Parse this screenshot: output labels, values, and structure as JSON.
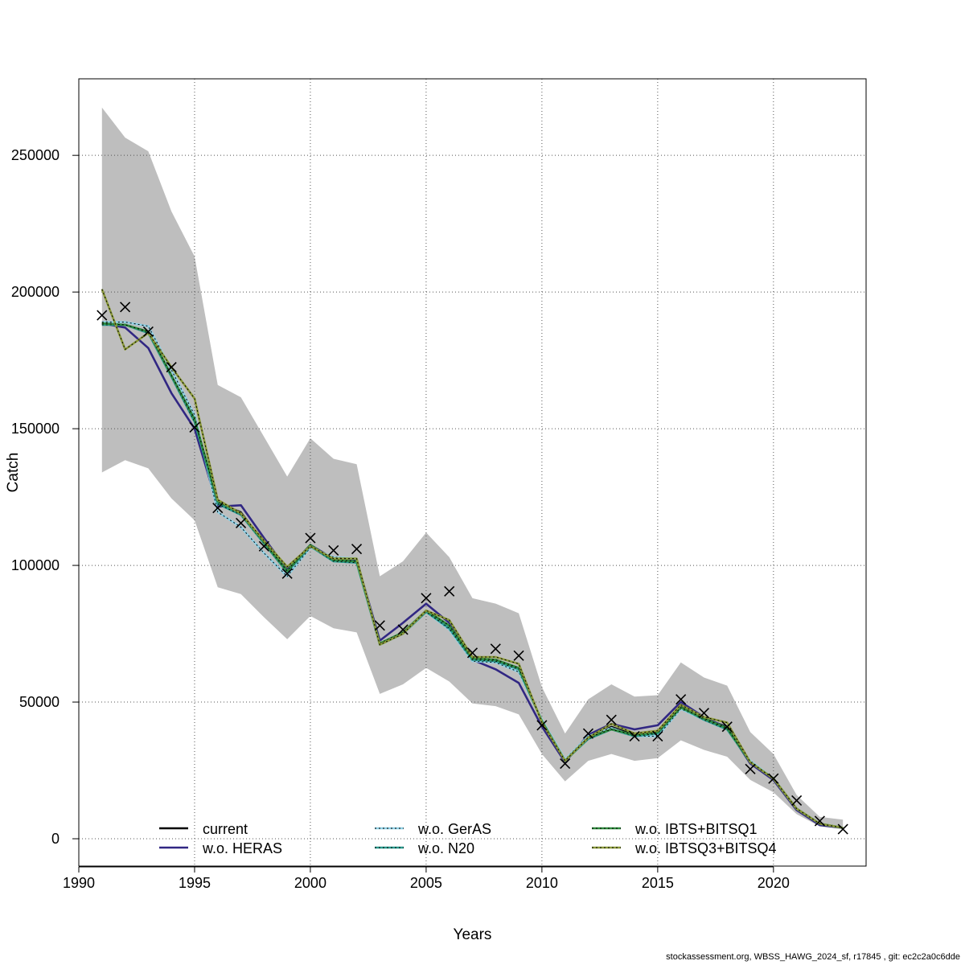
{
  "chart_data": {
    "type": "line",
    "xlabel": "Years",
    "ylabel": "Catch",
    "xlim": [
      1990,
      2024
    ],
    "ylim": [
      -10000,
      278000
    ],
    "x_ticks": [
      1990,
      1995,
      2000,
      2005,
      2010,
      2015,
      2020
    ],
    "y_ticks": [
      0,
      50000,
      100000,
      150000,
      200000,
      250000
    ],
    "grid": true,
    "legend_position": "bottom",
    "x": [
      1991,
      1992,
      1993,
      1994,
      1995,
      1996,
      1997,
      1998,
      1999,
      2000,
      2001,
      2002,
      2003,
      2004,
      2005,
      2006,
      2007,
      2008,
      2009,
      2010,
      2011,
      2012,
      2013,
      2014,
      2015,
      2016,
      2017,
      2018,
      2019,
      2020,
      2021,
      2022,
      2023
    ],
    "band_upper": [
      267500,
      256500,
      251500,
      229500,
      213000,
      166000,
      161500,
      147000,
      132500,
      146500,
      139000,
      137000,
      96000,
      101500,
      112000,
      103000,
      88000,
      86000,
      82500,
      55500,
      38500,
      51000,
      56500,
      52000,
      52500,
      64500,
      59000,
      56000,
      39000,
      31000,
      16000,
      8000,
      7000
    ],
    "band_lower": [
      134000,
      138500,
      135500,
      124500,
      116500,
      92000,
      89500,
      81000,
      73000,
      81500,
      77000,
      75500,
      53000,
      56500,
      62500,
      57500,
      49500,
      48500,
      45500,
      31000,
      21000,
      28500,
      31000,
      28500,
      29500,
      36000,
      32500,
      30000,
      21500,
      17000,
      9000,
      4500,
      3500
    ],
    "observed": [
      191500,
      194500,
      185500,
      172500,
      150500,
      121000,
      115500,
      107000,
      97000,
      110000,
      105500,
      106000,
      78000,
      76500,
      88000,
      90500,
      68000,
      69500,
      67000,
      41500,
      27500,
      38500,
      43500,
      37500,
      37500,
      51000,
      46000,
      41000,
      25500,
      22000,
      14000,
      6500,
      3500
    ],
    "series": [
      {
        "name": "current",
        "color": "#000000",
        "values": [
          188500,
          188000,
          185000,
          169000,
          153000,
          123000,
          119500,
          108500,
          98000,
          107500,
          102000,
          101500,
          71500,
          75500,
          83500,
          78000,
          66000,
          65500,
          62500,
          43000,
          28500,
          37000,
          41000,
          38000,
          39000,
          48500,
          44000,
          41000,
          28000,
          22000,
          11000,
          5500,
          4000
        ]
      },
      {
        "name": "w.o. HERAS",
        "color": "#312783",
        "values": [
          188500,
          187000,
          179500,
          163000,
          150000,
          121500,
          122000,
          110000,
          98500,
          107500,
          102500,
          102000,
          72500,
          79000,
          86000,
          79000,
          65500,
          62000,
          57000,
          41000,
          28000,
          38000,
          42000,
          40000,
          41500,
          50000,
          44500,
          40500,
          27500,
          21500,
          10500,
          5000,
          4000
        ]
      },
      {
        "name": "w.o. GerAS",
        "color": "#8fd1e6",
        "values": [
          189000,
          189000,
          187500,
          171500,
          155000,
          119500,
          114000,
          104500,
          96000,
          106500,
          103000,
          102500,
          71000,
          75000,
          83000,
          76500,
          65000,
          64500,
          61000,
          43500,
          29000,
          37500,
          40500,
          37500,
          37500,
          47500,
          43500,
          40000,
          28500,
          22000,
          11000,
          5500,
          4000
        ]
      },
      {
        "name": "w.o. N20",
        "color": "#2a9d8f",
        "values": [
          188000,
          188000,
          185000,
          169000,
          152500,
          122500,
          118500,
          108000,
          97500,
          107000,
          101500,
          101000,
          71000,
          75000,
          83000,
          77000,
          65500,
          65000,
          62000,
          43000,
          28500,
          36500,
          40000,
          37500,
          38500,
          48000,
          43500,
          40000,
          28000,
          22000,
          11000,
          5500,
          4000
        ]
      },
      {
        "name": "w.o. IBTS+BITSQ1",
        "color": "#2e8b3e",
        "values": [
          188500,
          188000,
          185500,
          169500,
          153500,
          123500,
          119000,
          108500,
          98000,
          107500,
          102000,
          101500,
          71500,
          75500,
          83500,
          78000,
          66000,
          65500,
          62500,
          43000,
          28500,
          37000,
          40000,
          38000,
          39000,
          48000,
          44000,
          40500,
          28000,
          22000,
          11000,
          5500,
          4000
        ]
      },
      {
        "name": "w.o. IBTSQ3+BITSQ4",
        "color": "#8c9b3a",
        "values": [
          201000,
          179000,
          185000,
          172500,
          161000,
          124000,
          119000,
          109000,
          99500,
          107000,
          102500,
          102500,
          71000,
          75000,
          83500,
          80000,
          66500,
          66500,
          64000,
          42500,
          28500,
          37000,
          42000,
          38500,
          39500,
          49000,
          44500,
          42500,
          28000,
          22000,
          11000,
          5500,
          4000
        ]
      }
    ]
  },
  "footer": {
    "credit": "stockassessment.org, WBSS_HAWG_2024_sf, r17845 , git: ec2c2a0c6dde"
  }
}
